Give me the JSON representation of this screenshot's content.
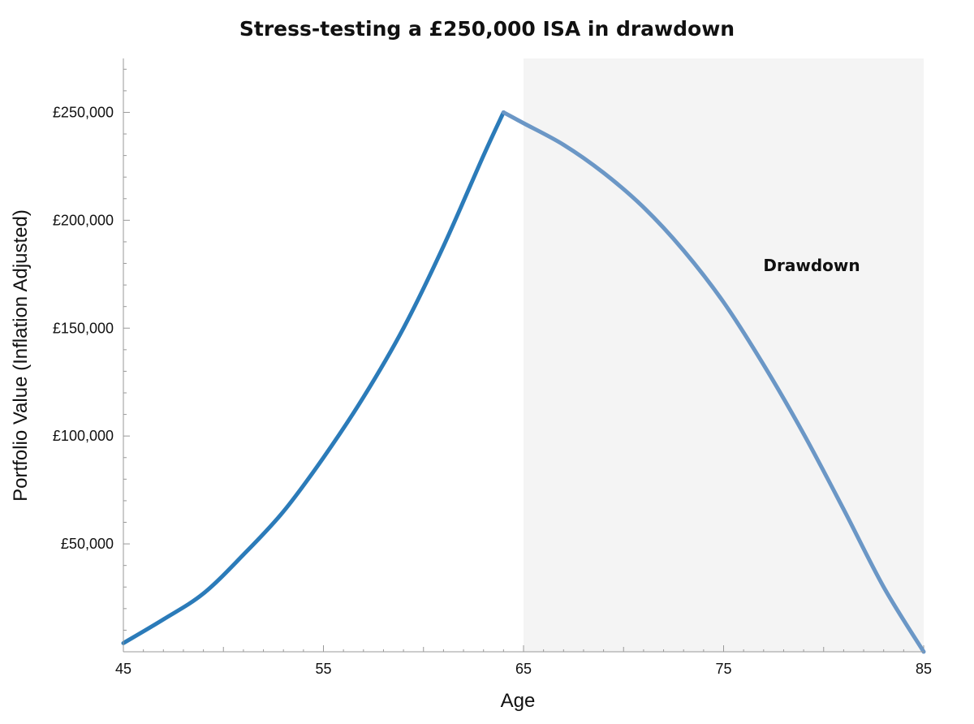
{
  "chart_data": {
    "type": "line",
    "title": "Stress-testing a £250,000 ISA in drawdown",
    "xlabel": "Age",
    "ylabel": "Portfolio Value (Inflation Adjusted)",
    "xlim": [
      45,
      85
    ],
    "ylim": [
      0,
      275000
    ],
    "xticks": [
      45,
      55,
      65,
      75,
      85
    ],
    "xtick_labels": [
      "45",
      "55",
      "65",
      "75",
      "85"
    ],
    "yticks": [
      50000,
      100000,
      150000,
      200000,
      250000
    ],
    "ytick_labels": [
      "£50,000",
      "£100,000",
      "£150,000",
      "£200,000",
      "£250,000"
    ],
    "grid": false,
    "legend": "none",
    "shaded_region": {
      "x_range": [
        65,
        85
      ],
      "label": "Drawdown",
      "color": "#f4f4f4"
    },
    "series": [
      {
        "color": "#2b7bb9",
        "x": [
          45,
          47,
          49,
          51,
          53,
          55,
          57,
          59,
          61,
          63,
          64
        ],
        "y": [
          4000,
          15000,
          27000,
          45000,
          65000,
          90000,
          118000,
          150000,
          188000,
          230000,
          250000
        ]
      },
      {
        "color": "#6b97c6",
        "x": [
          64,
          65,
          67,
          69,
          71,
          73,
          75,
          77,
          79,
          81,
          83,
          85
        ],
        "y": [
          250000,
          245000,
          235000,
          222000,
          206000,
          186000,
          162000,
          133000,
          101000,
          66000,
          30000,
          0
        ]
      }
    ]
  }
}
